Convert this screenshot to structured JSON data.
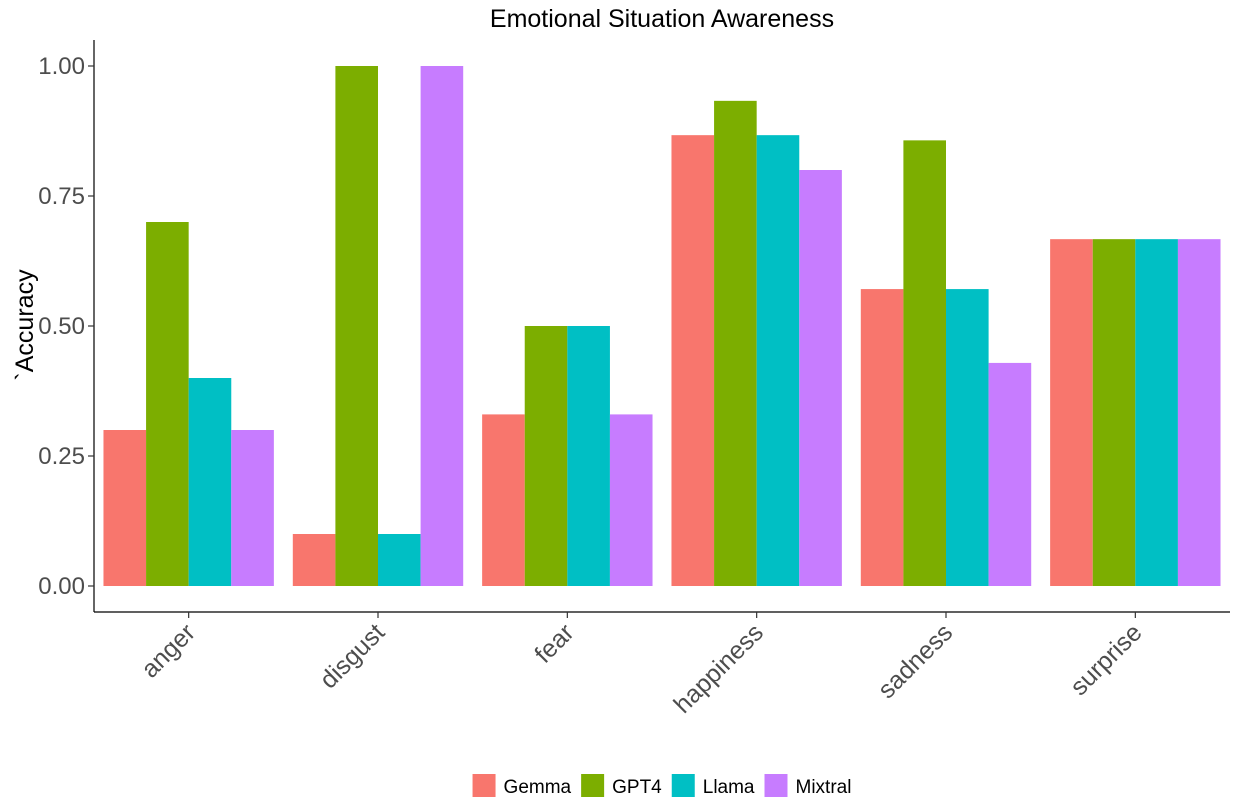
{
  "chart_data": {
    "type": "bar",
    "title": "Emotional Situation Awareness",
    "xlabel": "",
    "ylabel": "`Accuracy",
    "ylim": [
      -0.05,
      1.05
    ],
    "yticks": [
      0.0,
      0.25,
      0.5,
      0.75,
      1.0
    ],
    "ytick_labels": [
      "0.00",
      "0.25",
      "0.50",
      "0.75",
      "1.00"
    ],
    "categories": [
      "anger",
      "disgust",
      "fear",
      "happiness",
      "sadness",
      "surprise"
    ],
    "series": [
      {
        "name": "Gemma",
        "color": "#F8766D",
        "values": [
          0.3,
          0.1,
          0.33,
          0.867,
          0.571,
          0.667
        ]
      },
      {
        "name": "GPT4",
        "color": "#7CAE00",
        "values": [
          0.7,
          1.0,
          0.5,
          0.933,
          0.857,
          0.667
        ]
      },
      {
        "name": "Llama",
        "color": "#00BFC4",
        "values": [
          0.4,
          0.1,
          0.5,
          0.867,
          0.571,
          0.667
        ]
      },
      {
        "name": "Mixtral",
        "color": "#C77CFF",
        "values": [
          0.3,
          1.0,
          0.33,
          0.8,
          0.429,
          0.667
        ]
      }
    ],
    "grid": false,
    "legend_position": "bottom"
  }
}
